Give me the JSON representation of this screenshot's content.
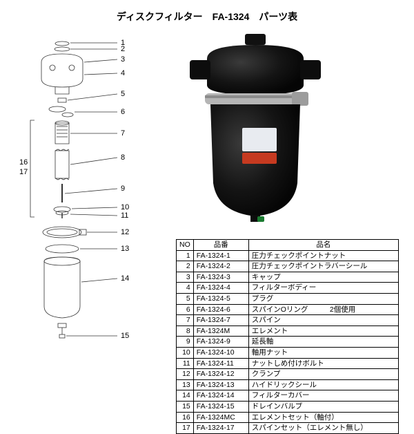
{
  "title": "ディスクフィルター　FA-1324　パーツ表",
  "table_headers": {
    "no": "NO",
    "part_number": "品番",
    "part_name": "品名"
  },
  "parts": [
    {
      "no": "1",
      "pn": "FA-1324-1",
      "name": "圧力チェックポイントナット"
    },
    {
      "no": "2",
      "pn": "FA-1324-2",
      "name": "圧力チェックポイントラバーシール"
    },
    {
      "no": "3",
      "pn": "FA-1324-3",
      "name": "キャップ"
    },
    {
      "no": "4",
      "pn": "FA-1324-4",
      "name": "フィルターボディー"
    },
    {
      "no": "5",
      "pn": "FA-1324-5",
      "name": "プラグ"
    },
    {
      "no": "6",
      "pn": "FA-1324-6",
      "name": "スパインOリング　　　2個使用"
    },
    {
      "no": "7",
      "pn": "FA-1324-7",
      "name": "スパイン"
    },
    {
      "no": "8",
      "pn": "FA-1324M",
      "name": "エレメント"
    },
    {
      "no": "9",
      "pn": "FA-1324-9",
      "name": "延長軸"
    },
    {
      "no": "10",
      "pn": "FA-1324-10",
      "name": "軸用ナット"
    },
    {
      "no": "11",
      "pn": "FA-1324-11",
      "name": "ナットしめ付けボルト"
    },
    {
      "no": "12",
      "pn": "FA-1324-12",
      "name": "クランプ"
    },
    {
      "no": "13",
      "pn": "FA-1324-13",
      "name": "ハイドリックシール"
    },
    {
      "no": "14",
      "pn": "FA-1324-14",
      "name": "フィルターカバー"
    },
    {
      "no": "15",
      "pn": "FA-1324-15",
      "name": "ドレインバルブ"
    },
    {
      "no": "16",
      "pn": "FA-1324MC",
      "name": "エレメントセット（軸付）"
    },
    {
      "no": "17",
      "pn": "FA-1324-17",
      "name": "スパインセット（エレメント無し）"
    }
  ],
  "diagram_labels": {
    "n1": "1",
    "n2": "2",
    "n3": "3",
    "n4": "4",
    "n5": "5",
    "n6": "6",
    "n7": "7",
    "n8": "8",
    "n9": "9",
    "n10": "10",
    "n11": "11",
    "n12": "12",
    "n13": "13",
    "n14": "14",
    "n15": "15",
    "n16": "16",
    "n17": "17"
  },
  "colors": {
    "line": "#333333",
    "body_black": "#111111",
    "body_highlight": "#3a3a3a",
    "clamp": "#a9a9a9",
    "label_white": "#e8ebf0",
    "label_red": "#c63a20",
    "valve": "#1a7a30"
  }
}
